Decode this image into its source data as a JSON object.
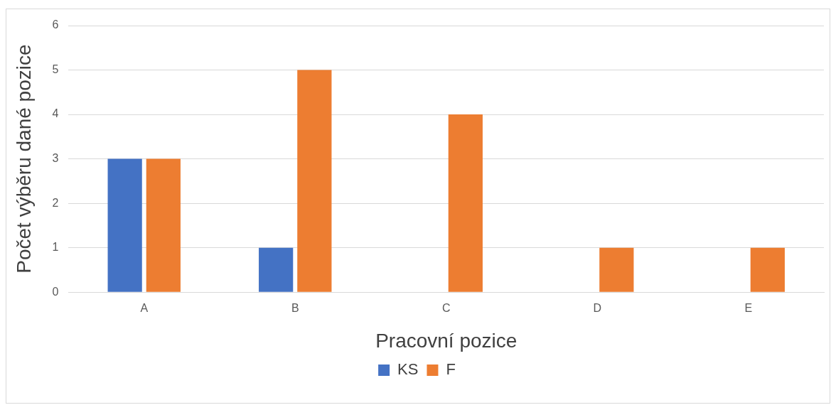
{
  "chart_data": {
    "type": "bar",
    "xlabel": "Pracovní pozice",
    "ylabel": "Počet výběru dané pozice",
    "categories": [
      "A",
      "B",
      "C",
      "D",
      "E"
    ],
    "series": [
      {
        "name": "KS",
        "color": "#4472c4",
        "values": [
          3,
          1,
          0,
          0,
          0
        ]
      },
      {
        "name": "F",
        "color": "#ed7d31",
        "values": [
          3,
          5,
          4,
          1,
          1
        ]
      }
    ],
    "ylim": [
      0,
      6
    ],
    "yticks": [
      0,
      1,
      2,
      3,
      4,
      5,
      6
    ],
    "grid": "y",
    "legend": "bottom"
  }
}
